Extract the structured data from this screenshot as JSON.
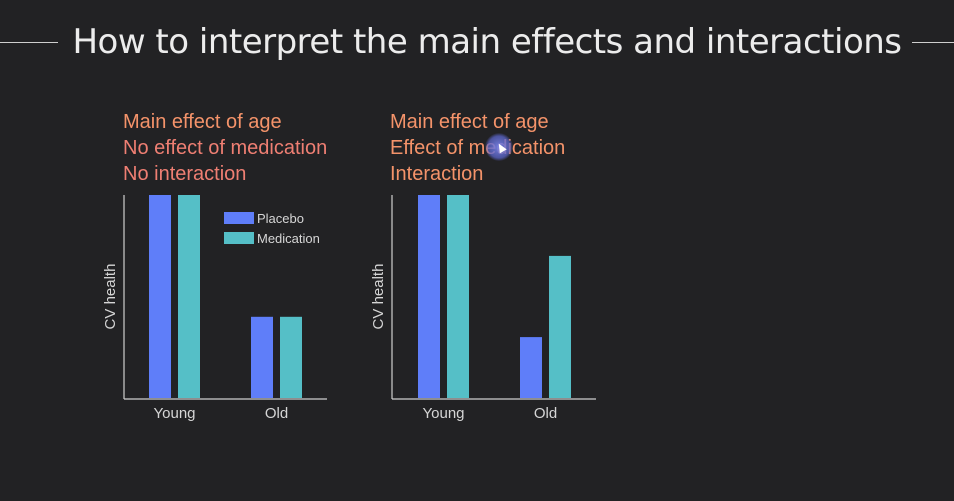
{
  "slide": {
    "title": "How to interpret the main effects and interactions"
  },
  "colors": {
    "background": "#222224",
    "placebo": "#5f7ef9",
    "medication": "#55bfc7",
    "caption_orange": "#f4936a",
    "caption_salmon": "#ef7f73",
    "axis": "#cfcfcf"
  },
  "chart_data": [
    {
      "type": "bar",
      "captions": [
        "Main effect of age",
        "No effect of medication",
        "No interaction"
      ],
      "categories": [
        "Young",
        "Old"
      ],
      "ylabel": "CV health",
      "xlabel": "",
      "ylim": [
        0,
        100
      ],
      "legend": "top-right",
      "series": [
        {
          "name": "Placebo",
          "values": [
            100,
            40
          ]
        },
        {
          "name": "Medication",
          "values": [
            100,
            40
          ]
        }
      ]
    },
    {
      "type": "bar",
      "captions": [
        "Main effect of age",
        "Effect of medication",
        "Interaction"
      ],
      "categories": [
        "Young",
        "Old"
      ],
      "ylabel": "CV health",
      "xlabel": "",
      "ylim": [
        0,
        100
      ],
      "series": [
        {
          "values": [
            100,
            30
          ]
        },
        {
          "values": [
            100,
            70
          ]
        }
      ]
    }
  ]
}
